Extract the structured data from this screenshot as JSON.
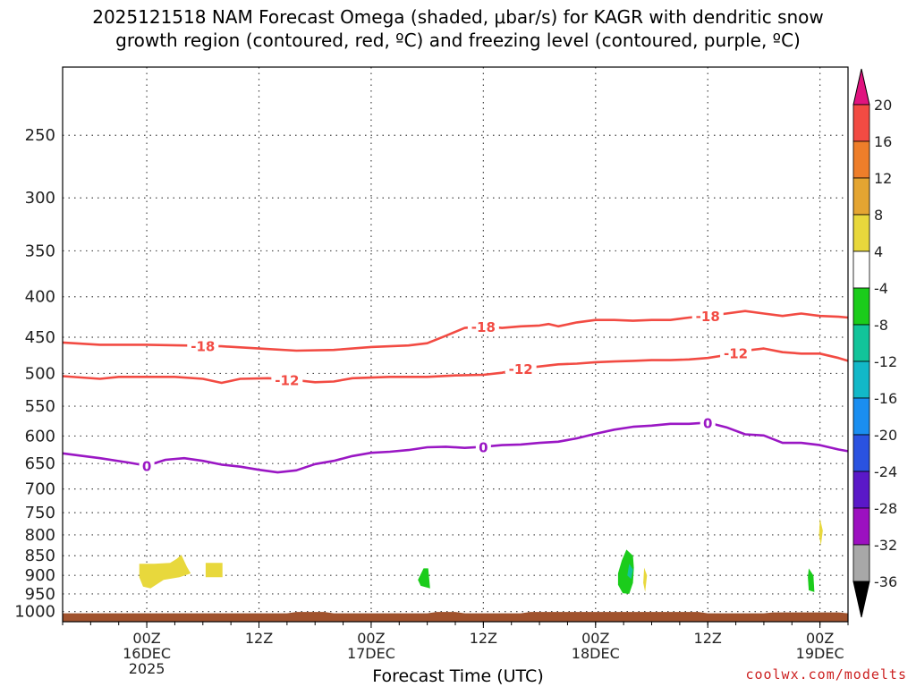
{
  "chart_data": {
    "type": "heatmap",
    "title_line1": "2025121518 NAM Forecast Omega (shaded, μbar/s) for KAGR with dendritic snow",
    "title_line2": "growth region (contoured, red, ºC) and freezing level (contoured, purple, ºC)",
    "xlabel": "Forecast Time (UTC)",
    "credit": "coolwx.com/modelts",
    "x_range_hours": [
      -9,
      75
    ],
    "y_range_hpa": [
      205,
      1030
    ],
    "y_ticks": [
      250,
      300,
      350,
      400,
      450,
      500,
      550,
      600,
      650,
      700,
      750,
      800,
      850,
      900,
      950,
      1000
    ],
    "x_ticks": [
      {
        "hour": 0,
        "label": "00Z",
        "date": "16DEC",
        "year": "2025"
      },
      {
        "hour": 12,
        "label": "12Z"
      },
      {
        "hour": 24,
        "label": "00Z",
        "date": "17DEC"
      },
      {
        "hour": 36,
        "label": "12Z"
      },
      {
        "hour": 48,
        "label": "00Z",
        "date": "18DEC"
      },
      {
        "hour": 60,
        "label": "12Z"
      },
      {
        "hour": 72,
        "label": "00Z",
        "date": "19DEC"
      }
    ],
    "colorbar": {
      "labels": [
        "20",
        "16",
        "12",
        "8",
        "4",
        "-4",
        "-8",
        "-12",
        "-16",
        "-20",
        "-24",
        "-28",
        "-32",
        "-36"
      ],
      "top_triangle_color": "#e0147f",
      "bottom_triangle_color": "#000000",
      "bins": [
        {
          "from": 20,
          "to": 16,
          "color": "#f24b43"
        },
        {
          "from": 16,
          "to": 12,
          "color": "#ee7e2a"
        },
        {
          "from": 12,
          "to": 8,
          "color": "#e4a532"
        },
        {
          "from": 8,
          "to": 4,
          "color": "#e8d83c"
        },
        {
          "from": 4,
          "to": -4,
          "color": "#ffffff"
        },
        {
          "from": -4,
          "to": -8,
          "color": "#1bcc1b"
        },
        {
          "from": -8,
          "to": -12,
          "color": "#12c49a"
        },
        {
          "from": -12,
          "to": -16,
          "color": "#12b8c8"
        },
        {
          "from": -16,
          "to": -20,
          "color": "#1a8ef0"
        },
        {
          "from": -20,
          "to": -24,
          "color": "#2a52e0"
        },
        {
          "from": -24,
          "to": -28,
          "color": "#5a18c8"
        },
        {
          "from": -28,
          "to": -32,
          "color": "#9c10c0"
        },
        {
          "from": -32,
          "to": -36,
          "color": "#a8a8a8"
        }
      ]
    },
    "contours": [
      {
        "name": "-18",
        "color": "#f24b43",
        "dashed_label": true,
        "label_positions_hour": [
          6,
          36,
          60
        ],
        "points": [
          [
            -9,
            457
          ],
          [
            -5,
            460
          ],
          [
            0,
            460
          ],
          [
            4,
            461
          ],
          [
            8,
            462
          ],
          [
            12,
            465
          ],
          [
            16,
            468
          ],
          [
            20,
            467
          ],
          [
            24,
            463
          ],
          [
            28,
            461
          ],
          [
            30,
            458
          ],
          [
            32,
            448
          ],
          [
            34,
            438
          ],
          [
            36,
            436
          ],
          [
            38,
            438
          ],
          [
            40,
            436
          ],
          [
            42,
            435
          ],
          [
            43,
            433
          ],
          [
            44,
            436
          ],
          [
            46,
            431
          ],
          [
            48,
            428
          ],
          [
            50,
            428
          ],
          [
            52,
            429
          ],
          [
            54,
            428
          ],
          [
            56,
            428
          ],
          [
            58,
            425
          ],
          [
            60,
            423
          ],
          [
            62,
            420
          ],
          [
            64,
            417
          ],
          [
            66,
            420
          ],
          [
            68,
            423
          ],
          [
            70,
            420
          ],
          [
            72,
            423
          ],
          [
            74,
            424
          ],
          [
            75,
            425
          ]
        ]
      },
      {
        "name": "-12",
        "color": "#f24b43",
        "dashed_label": true,
        "label_positions_hour": [
          15,
          40,
          63
        ],
        "points": [
          [
            -9,
            504
          ],
          [
            -7,
            506
          ],
          [
            -5,
            508
          ],
          [
            -3,
            505
          ],
          [
            0,
            505
          ],
          [
            3,
            505
          ],
          [
            6,
            508
          ],
          [
            8,
            514
          ],
          [
            10,
            508
          ],
          [
            13,
            507
          ],
          [
            16,
            510
          ],
          [
            18,
            513
          ],
          [
            20,
            512
          ],
          [
            22,
            507
          ],
          [
            26,
            505
          ],
          [
            30,
            505
          ],
          [
            33,
            503
          ],
          [
            36,
            502
          ],
          [
            38,
            499
          ],
          [
            40,
            493
          ],
          [
            42,
            490
          ],
          [
            44,
            487
          ],
          [
            46,
            486
          ],
          [
            48,
            484
          ],
          [
            50,
            483
          ],
          [
            52,
            482
          ],
          [
            54,
            481
          ],
          [
            56,
            481
          ],
          [
            58,
            480
          ],
          [
            60,
            478
          ],
          [
            62,
            474
          ],
          [
            64,
            468
          ],
          [
            66,
            465
          ],
          [
            68,
            470
          ],
          [
            70,
            472
          ],
          [
            72,
            472
          ],
          [
            74,
            478
          ],
          [
            75,
            482
          ]
        ]
      },
      {
        "name": "0",
        "color": "#9a17c4",
        "dashed_label": false,
        "label_positions_hour": [
          0,
          36,
          60
        ],
        "points": [
          [
            -9,
            631
          ],
          [
            -5,
            640
          ],
          [
            -2,
            648
          ],
          [
            0,
            654
          ],
          [
            2,
            643
          ],
          [
            4,
            640
          ],
          [
            6,
            645
          ],
          [
            8,
            652
          ],
          [
            10,
            656
          ],
          [
            12,
            662
          ],
          [
            14,
            667
          ],
          [
            16,
            663
          ],
          [
            18,
            651
          ],
          [
            20,
            645
          ],
          [
            22,
            636
          ],
          [
            24,
            630
          ],
          [
            26,
            628
          ],
          [
            28,
            625
          ],
          [
            30,
            620
          ],
          [
            32,
            619
          ],
          [
            34,
            621
          ],
          [
            36,
            619
          ],
          [
            38,
            616
          ],
          [
            40,
            615
          ],
          [
            42,
            612
          ],
          [
            44,
            610
          ],
          [
            46,
            604
          ],
          [
            48,
            596
          ],
          [
            50,
            589
          ],
          [
            52,
            584
          ],
          [
            54,
            582
          ],
          [
            56,
            579
          ],
          [
            58,
            579
          ],
          [
            60,
            577
          ],
          [
            62,
            585
          ],
          [
            64,
            597
          ],
          [
            66,
            599
          ],
          [
            68,
            612
          ],
          [
            70,
            612
          ],
          [
            72,
            616
          ],
          [
            74,
            624
          ],
          [
            75,
            627
          ]
        ]
      }
    ],
    "omega_blobs": [
      {
        "value": 5,
        "color": "#e8d83c",
        "points": [
          [
            -0.8,
            870
          ],
          [
            0.8,
            870
          ],
          [
            2.5,
            868
          ],
          [
            3.2,
            858
          ],
          [
            3.7,
            848
          ],
          [
            4.3,
            878
          ],
          [
            4.7,
            895
          ],
          [
            3.5,
            905
          ],
          [
            1.8,
            912
          ],
          [
            0.4,
            935
          ],
          [
            -0.4,
            930
          ],
          [
            -0.8,
            905
          ]
        ]
      },
      {
        "value": 5,
        "color": "#e8d83c",
        "points": [
          [
            6.3,
            868
          ],
          [
            8.1,
            868
          ],
          [
            8.1,
            905
          ],
          [
            6.3,
            905
          ]
        ]
      },
      {
        "value": -5,
        "color": "#1bcc1b",
        "points": [
          [
            29.6,
            882
          ],
          [
            30.1,
            882
          ],
          [
            30.3,
            935
          ],
          [
            29.3,
            928
          ],
          [
            29,
            912
          ]
        ]
      },
      {
        "value": -6,
        "color": "#1bcc1b",
        "points": [
          [
            51.3,
            835
          ],
          [
            52.0,
            850
          ],
          [
            52.1,
            880
          ],
          [
            52.0,
            920
          ],
          [
            51.6,
            950
          ],
          [
            50.9,
            948
          ],
          [
            50.4,
            925
          ],
          [
            50.4,
            895
          ],
          [
            50.8,
            862
          ]
        ]
      },
      {
        "value": -10,
        "color": "#12c49a",
        "points": [
          [
            51.6,
            870
          ],
          [
            52.0,
            885
          ],
          [
            51.8,
            910
          ],
          [
            51.4,
            900
          ]
        ]
      },
      {
        "value": 5,
        "color": "#e8d83c",
        "points": [
          [
            53.2,
            880
          ],
          [
            53.5,
            900
          ],
          [
            53.3,
            945
          ],
          [
            53.1,
            920
          ]
        ]
      },
      {
        "value": -5,
        "color": "#1bcc1b",
        "points": [
          [
            70.8,
            882
          ],
          [
            71.3,
            900
          ],
          [
            71.4,
            945
          ],
          [
            70.8,
            940
          ],
          [
            70.7,
            905
          ]
        ]
      },
      {
        "value": 5,
        "color": "#e8d83c",
        "points": [
          [
            72,
            762
          ],
          [
            72.3,
            790
          ],
          [
            72.1,
            825
          ],
          [
            71.9,
            800
          ]
        ]
      }
    ],
    "surface_color": "#a0522d",
    "surface_top_hpa": 1000
  }
}
